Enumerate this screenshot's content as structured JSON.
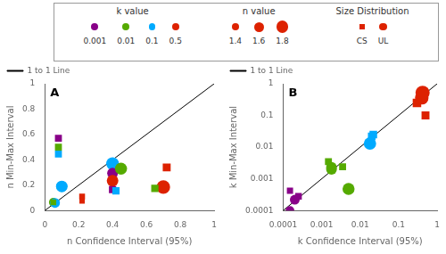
{
  "chart_data": [
    {
      "type": "scatter",
      "annotations": [
        "A"
      ],
      "xlabel": "n Confidence Interval (95%)",
      "ylabel": "n Min-Max Interval",
      "xlim": [
        0,
        1
      ],
      "ylim": [
        0,
        1
      ],
      "xticks": [
        0,
        0.2,
        0.4,
        0.6,
        0.8,
        1
      ],
      "yticks": [
        0,
        0.2,
        0.4,
        0.6,
        0.8,
        1
      ],
      "grid": false,
      "legend": "upper left",
      "series": [
        {
          "name": "1 to 1 Line",
          "type": "line",
          "color": "#000000",
          "x": [
            0,
            1
          ],
          "values": [
            0,
            1
          ]
        },
        {
          "type": "scatter",
          "marker": "square",
          "x": [
            0.08,
            0.08,
            0.08,
            0.05,
            0.22,
            0.22,
            0.4,
            0.42,
            0.65,
            0.72
          ],
          "values": [
            0.57,
            0.5,
            0.445,
            0.065,
            0.11,
            0.075,
            0.165,
            0.155,
            0.175,
            0.34
          ],
          "colors": [
            "#880088",
            "#55AA00",
            "#00AAFF",
            "#55AA00",
            "#DD2200",
            "#DD2200",
            "#880088",
            "#00AAFF",
            "#55AA00",
            "#DD2200"
          ],
          "sizes": [
            100,
            100,
            100,
            70,
            70,
            60,
            110,
            110,
            110,
            130
          ]
        },
        {
          "type": "scatter",
          "marker": "circle",
          "x": [
            0.05,
            0.06,
            0.1,
            0.1,
            0.4,
            0.4,
            0.45,
            0.4,
            0.7
          ],
          "values": [
            0.065,
            0.06,
            0.19,
            0.19,
            0.37,
            0.295,
            0.33,
            0.235,
            0.185
          ],
          "colors": [
            "#55AA00",
            "#00AAFF",
            "#55AA00",
            "#00AAFF",
            "#00AAFF",
            "#880088",
            "#55AA00",
            "#DD2200",
            "#DD2200"
          ],
          "sizes": [
            80,
            100,
            120,
            140,
            170,
            120,
            150,
            140,
            190
          ]
        }
      ]
    },
    {
      "type": "scatter",
      "annotations": [
        "B"
      ],
      "xlabel": "k Confidence Interval (95%)",
      "ylabel": "k Min-Max Interval",
      "log": true,
      "xlim": [
        0.0001,
        1
      ],
      "ylim": [
        0.0001,
        1
      ],
      "xticks": [
        0.0001,
        0.001,
        0.01,
        0.1,
        1
      ],
      "yticks": [
        0.0001,
        0.001,
        0.01,
        0.1,
        1
      ],
      "grid": false,
      "legend": "upper left",
      "series": [
        {
          "name": "1 to 1 Line",
          "type": "line",
          "color": "#000000",
          "x": [
            0.0001,
            1
          ],
          "values": [
            0.0001,
            1
          ]
        },
        {
          "type": "scatter",
          "marker": "square",
          "x": [
            0.00015,
            0.00025,
            0.0015,
            0.0035,
            0.02,
            0.022,
            0.3,
            0.5
          ],
          "values": [
            0.00042,
            0.00028,
            0.0035,
            0.0024,
            0.022,
            0.025,
            0.25,
            0.1
          ],
          "colors": [
            "#880088",
            "#880088",
            "#55AA00",
            "#55AA00",
            "#00AAFF",
            "#00AAFF",
            "#DD2200",
            "#DD2200"
          ],
          "sizes": [
            80,
            90,
            100,
            100,
            120,
            120,
            150,
            130
          ]
        },
        {
          "type": "scatter",
          "marker": "circle",
          "x": [
            0.00015,
            0.0002,
            0.0018,
            0.0018,
            0.005,
            0.018,
            0.4,
            0.42
          ],
          "values": [
            0.0001,
            0.00022,
            0.002,
            0.0023,
            0.00048,
            0.013,
            0.36,
            0.52
          ],
          "colors": [
            "#880088",
            "#880088",
            "#55AA00",
            "#55AA00",
            "#55AA00",
            "#00AAFF",
            "#DD2200",
            "#DD2200"
          ],
          "sizes": [
            80,
            100,
            120,
            120,
            150,
            160,
            190,
            210
          ]
        }
      ]
    }
  ],
  "key": [
    {
      "title": "k value",
      "items": [
        {
          "label": "0.001",
          "color": "#880088",
          "marker": "circle",
          "size": 50
        },
        {
          "label": "0.01",
          "color": "#55AA00",
          "marker": "circle",
          "size": 50
        },
        {
          "label": "0.1",
          "color": "#00AAFF",
          "marker": "circle",
          "size": 50
        },
        {
          "label": "0.5",
          "color": "#DD2200",
          "marker": "circle",
          "size": 50
        }
      ]
    },
    {
      "title": "n value",
      "items": [
        {
          "label": "1.4",
          "color": "#DD2200",
          "marker": "circle",
          "size": 50
        },
        {
          "label": "1.6",
          "color": "#DD2200",
          "marker": "circle",
          "size": 100
        },
        {
          "label": "1.8",
          "color": "#DD2200",
          "marker": "circle",
          "size": 160
        }
      ]
    },
    {
      "title": "Size Distribution",
      "items": [
        {
          "label": "CS",
          "color": "#DD2200",
          "marker": "square",
          "size": 60
        },
        {
          "label": "UL",
          "color": "#DD2200",
          "marker": "circle",
          "size": 60
        }
      ]
    }
  ]
}
